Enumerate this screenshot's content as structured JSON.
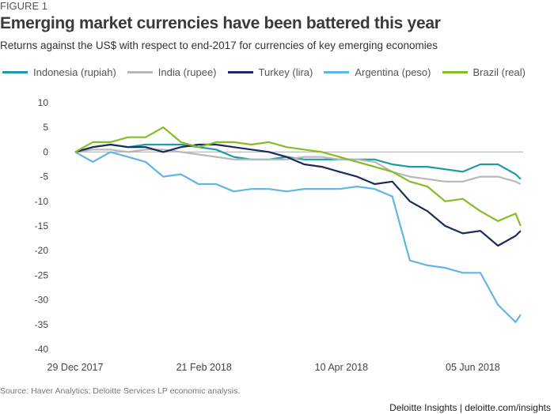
{
  "figure_label": "FIGURE 1",
  "source": "Source: Haver Analytics; Deloitte Services LP economic analysis.",
  "brand": "Deloitte Insights | deloitte.com/insights",
  "chart_data": {
    "type": "line",
    "title": "Emerging market currencies have been battered this year",
    "subtitle": "Returns against the US$ with respect to end-2017 for currencies of key emerging economies",
    "xlabel": "",
    "ylabel": "",
    "ylim": [
      -40,
      10
    ],
    "yticks": [
      "10",
      "5",
      "0",
      "-5",
      "-10",
      "-15",
      "-20",
      "-25",
      "-30",
      "-35",
      "-40"
    ],
    "xticks": [
      {
        "date": "2017-12-29",
        "label": "29 Dec 2017"
      },
      {
        "date": "2018-02-21",
        "label": "21 Feb 2018"
      },
      {
        "date": "2018-04-10",
        "label": "10 Apr 2018"
      },
      {
        "date": "2018-06-05",
        "label": "05 Jun 2018"
      }
    ],
    "grid": false,
    "zero_line": true,
    "legend_position": "top",
    "x": [
      "2017-12-29",
      "2018-01-05",
      "2018-01-12",
      "2018-01-19",
      "2018-01-26",
      "2018-02-02",
      "2018-02-09",
      "2018-02-16",
      "2018-02-23",
      "2018-03-02",
      "2018-03-09",
      "2018-03-16",
      "2018-03-23",
      "2018-03-30",
      "2018-04-06",
      "2018-04-13",
      "2018-04-20",
      "2018-04-27",
      "2018-05-04",
      "2018-05-11",
      "2018-05-18",
      "2018-05-25",
      "2018-06-01",
      "2018-06-08",
      "2018-06-15",
      "2018-06-22",
      "2018-06-24"
    ],
    "series": [
      {
        "name": "Indonesia (rupiah)",
        "color": "#1f9aa6",
        "values": [
          0,
          1,
          1.5,
          1,
          1.5,
          1.5,
          1.5,
          1,
          0.5,
          -1,
          -1.5,
          -1.5,
          -1,
          -1.5,
          -1.5,
          -1.5,
          -1.5,
          -1.5,
          -2.5,
          -3,
          -3,
          -3.5,
          -4,
          -2.5,
          -2.5,
          -4.5,
          -5.5
        ]
      },
      {
        "name": "India (rupee)",
        "color": "#b8b8b8",
        "values": [
          0,
          0.5,
          0.5,
          0,
          0.5,
          0.5,
          0,
          -0.5,
          -1,
          -1.5,
          -1.5,
          -1.5,
          -1.5,
          -1,
          -1,
          -1.5,
          -1.5,
          -2,
          -4,
          -5,
          -5.5,
          -6,
          -6,
          -5,
          -5,
          -6,
          -6.5
        ]
      },
      {
        "name": "Turkey (lira)",
        "color": "#1c2a5e",
        "values": [
          0,
          1,
          1.5,
          1,
          1,
          0,
          1,
          1.5,
          1.5,
          1,
          0.5,
          0,
          -1,
          -2.5,
          -3,
          -4,
          -5,
          -6.5,
          -6,
          -10,
          -12,
          -15,
          -16.5,
          -16,
          -19,
          -17,
          -16
        ]
      },
      {
        "name": "Argentina (peso)",
        "color": "#62b5e5",
        "values": [
          0,
          -2,
          0,
          -1,
          -2,
          -5,
          -4.5,
          -6.5,
          -6.5,
          -8,
          -7.5,
          -7.5,
          -8,
          -7.5,
          -7.5,
          -7.5,
          -7,
          -7.5,
          -9,
          -22,
          -23,
          -23.5,
          -24.5,
          -24.5,
          -31,
          -34.5,
          -33
        ]
      },
      {
        "name": "Brazil (real)",
        "color": "#86bc25",
        "values": [
          0,
          2,
          2,
          3,
          3,
          5,
          2,
          1,
          2,
          2,
          1.5,
          2,
          1,
          0.5,
          0,
          -1,
          -2,
          -3,
          -4,
          -6,
          -7,
          -10,
          -9.5,
          -12,
          -14,
          -12.5,
          -15
        ]
      }
    ]
  }
}
